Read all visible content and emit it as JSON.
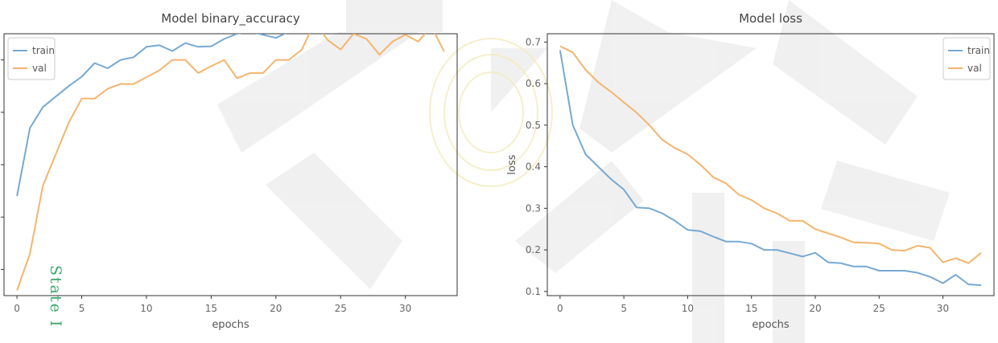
{
  "watermark": {
    "text": "State I"
  },
  "chart_data": [
    {
      "type": "line",
      "title": "Model binary_accuracy",
      "xlabel": "epochs",
      "ylabel": "",
      "xlim": [
        -1,
        34
      ],
      "ylim": [
        0.5,
        1.0
      ],
      "xticks": [
        0,
        5,
        10,
        15,
        20,
        25,
        30
      ],
      "yticks": [
        0.55,
        0.65,
        0.75,
        0.85,
        0.95
      ],
      "legend": "top-left",
      "x": [
        0,
        1,
        2,
        3,
        4,
        5,
        6,
        7,
        8,
        9,
        10,
        11,
        12,
        13,
        14,
        15,
        16,
        17,
        18,
        19,
        20,
        21,
        22,
        23,
        24,
        25,
        26,
        27,
        28,
        29,
        30,
        31,
        32,
        33
      ],
      "series": [
        {
          "name": "train",
          "color": "#77a9d3",
          "values": [
            0.69,
            0.82,
            0.86,
            0.88,
            0.9,
            0.918,
            0.944,
            0.934,
            0.95,
            0.955,
            0.975,
            0.978,
            0.967,
            0.982,
            0.975,
            0.976,
            0.99,
            1.0,
            1.004,
            0.998,
            0.992,
            1.004,
            1.008,
            1.01,
            1.016,
            1.022,
            1.016,
            1.015,
            1.011,
            1.019,
            1.024,
            1.012,
            1.03,
            1.033
          ]
        },
        {
          "name": "val",
          "color": "#f5b46e",
          "values": [
            0.51,
            0.58,
            0.71,
            0.77,
            0.83,
            0.876,
            0.876,
            0.895,
            0.904,
            0.904,
            0.917,
            0.93,
            0.95,
            0.95,
            0.925,
            0.938,
            0.95,
            0.915,
            0.925,
            0.925,
            0.95,
            0.95,
            0.97,
            1.022,
            0.988,
            0.97,
            1.0,
            0.99,
            0.96,
            0.985,
            0.998,
            0.985,
            1.014,
            0.966
          ]
        }
      ]
    },
    {
      "type": "line",
      "title": "Model loss",
      "xlabel": "epochs",
      "ylabel": "loss",
      "xlim": [
        -1,
        34
      ],
      "ylim": [
        0.09,
        0.72
      ],
      "xticks": [
        0,
        5,
        10,
        15,
        20,
        25,
        30
      ],
      "yticks": [
        0.1,
        0.2,
        0.3,
        0.4,
        0.5,
        0.6,
        0.7
      ],
      "legend": "top-right",
      "x": [
        0,
        1,
        2,
        3,
        4,
        5,
        6,
        7,
        8,
        9,
        10,
        11,
        12,
        13,
        14,
        15,
        16,
        17,
        18,
        19,
        20,
        21,
        22,
        23,
        24,
        25,
        26,
        27,
        28,
        29,
        30,
        31,
        32,
        33
      ],
      "series": [
        {
          "name": "train",
          "color": "#77a9d3",
          "values": [
            0.68,
            0.5,
            0.43,
            0.4,
            0.37,
            0.345,
            0.302,
            0.3,
            0.288,
            0.27,
            0.248,
            0.245,
            0.232,
            0.22,
            0.22,
            0.215,
            0.2,
            0.2,
            0.192,
            0.184,
            0.193,
            0.17,
            0.168,
            0.16,
            0.16,
            0.15,
            0.15,
            0.15,
            0.145,
            0.135,
            0.12,
            0.14,
            0.117,
            0.115
          ]
        },
        {
          "name": "val",
          "color": "#f5b46e",
          "values": [
            0.69,
            0.675,
            0.633,
            0.603,
            0.58,
            0.555,
            0.53,
            0.5,
            0.465,
            0.445,
            0.43,
            0.405,
            0.375,
            0.36,
            0.333,
            0.32,
            0.3,
            0.288,
            0.27,
            0.27,
            0.25,
            0.24,
            0.23,
            0.218,
            0.217,
            0.215,
            0.2,
            0.198,
            0.21,
            0.205,
            0.17,
            0.18,
            0.168,
            0.193
          ]
        }
      ]
    }
  ]
}
